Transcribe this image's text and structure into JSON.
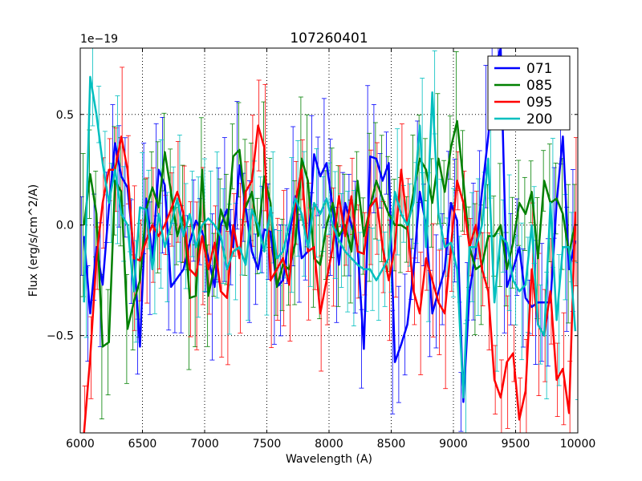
{
  "chart_data": {
    "type": "line",
    "title": "107260401",
    "xlabel": "Wavelength (A)",
    "ylabel": "Flux (erg/s/cm^2/A)",
    "offset_text": "1e−19",
    "xlim": [
      6000,
      10000
    ],
    "ylim": [
      -0.94,
      0.8
    ],
    "y_scale_note": "values in units of 1e-19",
    "x_ticks": [
      6000,
      6500,
      7000,
      7500,
      8000,
      8500,
      9000,
      9500,
      10000
    ],
    "x_tick_labels": [
      "6000",
      "6500",
      "7000",
      "7500",
      "8000",
      "8500",
      "9000",
      "9500",
      "10000"
    ],
    "y_ticks": [
      -0.5,
      0.0,
      0.5
    ],
    "y_tick_labels": [
      "−0.5",
      "0.0",
      "0.5"
    ],
    "grid": true,
    "legend_position": "top-right",
    "series": [
      {
        "name": "071",
        "color": "#0000ff",
        "x": [
          6030,
          6080,
          6130,
          6180,
          6230,
          6280,
          6330,
          6380,
          6430,
          6480,
          6530,
          6580,
          6630,
          6680,
          6730,
          6780,
          6830,
          6880,
          6930,
          6980,
          7030,
          7080,
          7130,
          7180,
          7230,
          7280,
          7330,
          7380,
          7430,
          7480,
          7530,
          7580,
          7630,
          7680,
          7730,
          7780,
          7830,
          7880,
          7930,
          7980,
          8030,
          8080,
          8130,
          8180,
          8230,
          8280,
          8330,
          8380,
          8430,
          8480,
          8530,
          8580,
          8630,
          8680,
          8730,
          8780,
          8830,
          8880,
          8930,
          8980,
          9030,
          9080,
          9130,
          9180,
          9230,
          9280,
          9330,
          9380,
          9430,
          9480,
          9530,
          9580,
          9630,
          9680,
          9730,
          9780,
          9830,
          9880,
          9930,
          9980
        ],
        "y": [
          -0.05,
          -0.4,
          -0.1,
          -0.27,
          0.08,
          0.37,
          0.22,
          0.17,
          -0.12,
          -0.55,
          0.12,
          -0.15,
          0.25,
          0.18,
          -0.28,
          -0.24,
          -0.2,
          -0.08,
          0.02,
          -0.03,
          -0.15,
          -0.28,
          0.0,
          0.07,
          -0.1,
          0.27,
          0.08,
          -0.12,
          -0.2,
          -0.02,
          -0.03,
          -0.28,
          -0.25,
          -0.05,
          0.13,
          -0.15,
          -0.12,
          0.32,
          0.22,
          0.28,
          0.08,
          -0.18,
          0.1,
          0.0,
          -0.1,
          -0.56,
          0.31,
          0.3,
          0.2,
          0.28,
          -0.62,
          -0.54,
          -0.45,
          -0.2,
          0.15,
          0.0,
          -0.4,
          -0.3,
          -0.2,
          0.1,
          0.02,
          -0.8,
          -0.3,
          -0.12,
          0.15,
          0.4,
          0.7,
          0.8,
          -0.28,
          -0.2,
          -0.1,
          -0.33,
          -0.37,
          -0.35,
          -0.35,
          -0.35,
          0.1,
          0.4,
          -0.2,
          -0.07
        ]
      },
      {
        "name": "085",
        "color": "#008000",
        "x": [
          6030,
          6080,
          6130,
          6180,
          6230,
          6280,
          6330,
          6380,
          6430,
          6480,
          6530,
          6580,
          6630,
          6680,
          6730,
          6780,
          6830,
          6880,
          6930,
          6980,
          7030,
          7080,
          7130,
          7180,
          7230,
          7280,
          7330,
          7380,
          7430,
          7480,
          7530,
          7580,
          7630,
          7680,
          7730,
          7780,
          7830,
          7880,
          7930,
          7980,
          8030,
          8080,
          8130,
          8180,
          8230,
          8280,
          8330,
          8380,
          8430,
          8480,
          8530,
          8580,
          8630,
          8680,
          8730,
          8780,
          8830,
          8880,
          8930,
          8980,
          9030,
          9080,
          9130,
          9180,
          9230,
          9280,
          9330,
          9380,
          9430,
          9480,
          9530,
          9580,
          9630,
          9680,
          9730,
          9780,
          9830,
          9880,
          9930,
          9980
        ],
        "y": [
          0.0,
          0.23,
          0.05,
          -0.55,
          -0.53,
          0.2,
          0.15,
          -0.47,
          -0.35,
          -0.25,
          0.07,
          0.17,
          0.08,
          0.33,
          0.15,
          -0.05,
          0.05,
          -0.33,
          -0.32,
          0.25,
          -0.32,
          -0.18,
          0.07,
          -0.02,
          0.31,
          0.34,
          0.08,
          0.15,
          -0.05,
          0.22,
          0.1,
          -0.28,
          -0.18,
          -0.2,
          -0.08,
          0.3,
          0.2,
          -0.15,
          -0.18,
          0.0,
          0.1,
          -0.05,
          0.0,
          -0.12,
          0.2,
          -0.05,
          0.08,
          0.2,
          0.12,
          0.05,
          0.0,
          0.0,
          -0.02,
          0.15,
          0.3,
          0.25,
          0.1,
          0.3,
          0.15,
          0.35,
          0.47,
          0.2,
          -0.1,
          -0.2,
          -0.18,
          -0.05,
          -0.05,
          0.0,
          -0.2,
          -0.08,
          0.1,
          0.05,
          0.15,
          -0.15,
          0.2,
          0.1,
          0.12,
          0.05,
          -0.13,
          0.01
        ]
      },
      {
        "name": "095",
        "color": "#ff0000",
        "x": [
          6030,
          6080,
          6130,
          6180,
          6230,
          6280,
          6330,
          6380,
          6430,
          6480,
          6530,
          6580,
          6630,
          6680,
          6730,
          6780,
          6830,
          6880,
          6930,
          6980,
          7030,
          7080,
          7130,
          7180,
          7230,
          7280,
          7330,
          7380,
          7430,
          7480,
          7530,
          7580,
          7630,
          7680,
          7730,
          7780,
          7830,
          7880,
          7930,
          7980,
          8030,
          8080,
          8130,
          8180,
          8230,
          8280,
          8330,
          8380,
          8430,
          8480,
          8530,
          8580,
          8630,
          8680,
          8730,
          8780,
          8830,
          8880,
          8930,
          8980,
          9030,
          9080,
          9130,
          9180,
          9230,
          9280,
          9330,
          9380,
          9430,
          9480,
          9530,
          9580,
          9630,
          9680,
          9730,
          9780,
          9830,
          9880,
          9930,
          9980
        ],
        "y": [
          -0.94,
          -0.6,
          -0.15,
          0.1,
          0.25,
          0.25,
          0.4,
          0.25,
          -0.15,
          -0.16,
          -0.07,
          0.0,
          -0.05,
          0.0,
          0.07,
          0.15,
          0.05,
          -0.2,
          -0.23,
          -0.05,
          -0.2,
          -0.08,
          -0.3,
          -0.33,
          0.0,
          -0.15,
          0.15,
          0.2,
          0.45,
          0.35,
          -0.25,
          -0.2,
          -0.15,
          -0.27,
          0.1,
          0.25,
          -0.12,
          -0.1,
          -0.4,
          -0.25,
          -0.1,
          0.13,
          -0.05,
          0.13,
          -0.12,
          -0.13,
          0.08,
          0.12,
          -0.1,
          -0.25,
          -0.1,
          0.25,
          0.0,
          -0.3,
          -0.4,
          -0.15,
          -0.25,
          -0.35,
          -0.4,
          -0.1,
          0.2,
          0.1,
          -0.1,
          0.0,
          -0.2,
          -0.3,
          -0.7,
          -0.78,
          -0.62,
          -0.58,
          -0.88,
          -0.75,
          -0.2,
          -0.45,
          -0.5,
          -0.3,
          -0.7,
          -0.65,
          -0.85,
          0.06
        ]
      },
      {
        "name": "200",
        "color": "#00bfbf",
        "x": [
          6030,
          6080,
          6130,
          6180,
          6230,
          6280,
          6330,
          6380,
          6430,
          6480,
          6530,
          6580,
          6630,
          6680,
          6730,
          6780,
          6830,
          6880,
          6930,
          6980,
          7030,
          7080,
          7130,
          7180,
          7230,
          7280,
          7330,
          7380,
          7430,
          7480,
          7530,
          7580,
          7630,
          7680,
          7730,
          7780,
          7830,
          7880,
          7930,
          7980,
          8030,
          8080,
          8130,
          8180,
          8230,
          8280,
          8330,
          8380,
          8430,
          8480,
          8530,
          8580,
          8630,
          8680,
          8730,
          8780,
          8830,
          8880,
          8930,
          8980,
          9030,
          9080,
          9130,
          9180,
          9230,
          9280,
          9330,
          9380,
          9430,
          9480,
          9530,
          9580,
          9630,
          9680,
          9730,
          9780,
          9830,
          9880,
          9930,
          9980
        ],
        "y": [
          -0.35,
          0.67,
          0.5,
          0.28,
          0.1,
          0.25,
          0.05,
          0.0,
          -0.3,
          0.08,
          0.07,
          -0.2,
          0.05,
          -0.1,
          0.0,
          0.12,
          -0.05,
          0.05,
          -0.1,
          0.0,
          0.03,
          0.0,
          -0.05,
          -0.2,
          -0.12,
          -0.1,
          -0.18,
          0.07,
          0.0,
          -0.12,
          0.08,
          -0.15,
          -0.12,
          0.0,
          0.12,
          0.05,
          -0.1,
          0.1,
          0.05,
          0.12,
          0.0,
          -0.07,
          -0.12,
          -0.15,
          -0.18,
          -0.2,
          -0.2,
          -0.25,
          -0.2,
          -0.15,
          0.15,
          0.05,
          0.0,
          0.1,
          0.45,
          -0.1,
          0.6,
          0.05,
          -0.1,
          -0.08,
          -0.2,
          -0.78,
          -0.1,
          -0.1,
          0.0,
          0.3,
          -0.35,
          -0.05,
          -0.08,
          -0.25,
          -0.3,
          -0.27,
          0.0,
          -0.45,
          -0.5,
          0.1,
          -0.43,
          -0.1,
          -0.1,
          -0.48
        ]
      }
    ]
  }
}
